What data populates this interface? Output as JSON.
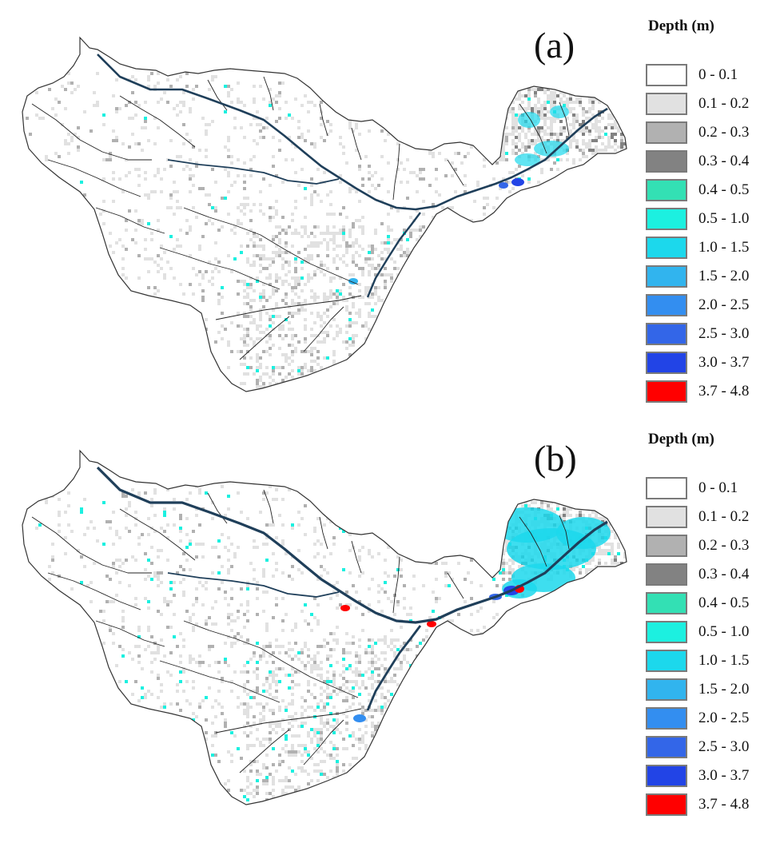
{
  "panels": [
    {
      "id": "a",
      "label": "(a)",
      "legend": {
        "title": "Depth (m)",
        "classes": [
          {
            "label": "0 - 0.1",
            "color": "#ffffff"
          },
          {
            "label": "0.1 - 0.2",
            "color": "#e1e1e1"
          },
          {
            "label": "0.2 - 0.3",
            "color": "#b1b1b1"
          },
          {
            "label": "0.3 - 0.4",
            "color": "#828282"
          },
          {
            "label": "0.4 - 0.5",
            "color": "#33e0b4"
          },
          {
            "label": "0.5 - 1.0",
            "color": "#1cf0e0"
          },
          {
            "label": "1.0 - 1.5",
            "color": "#1cd8ec"
          },
          {
            "label": "1.5 - 2.0",
            "color": "#31b4ee"
          },
          {
            "label": "2.0 - 2.5",
            "color": "#338ef0"
          },
          {
            "label": "2.5 - 3.0",
            "color": "#3366e8"
          },
          {
            "label": "3.0 - 3.7",
            "color": "#2244e6"
          },
          {
            "label": "3.7 - 4.8",
            "color": "#ff0000"
          }
        ]
      }
    },
    {
      "id": "b",
      "label": "(b)",
      "legend": {
        "title": "Depth (m)",
        "classes": [
          {
            "label": "0 - 0.1",
            "color": "#ffffff"
          },
          {
            "label": "0.1 - 0.2",
            "color": "#e1e1e1"
          },
          {
            "label": "0.2 - 0.3",
            "color": "#b1b1b1"
          },
          {
            "label": "0.3 - 0.4",
            "color": "#828282"
          },
          {
            "label": "0.4 - 0.5",
            "color": "#33e0b4"
          },
          {
            "label": "0.5 - 1.0",
            "color": "#1cf0e0"
          },
          {
            "label": "1.0 - 1.5",
            "color": "#1cd8ec"
          },
          {
            "label": "1.5 - 2.0",
            "color": "#31b4ee"
          },
          {
            "label": "2.0 - 2.5",
            "color": "#338ef0"
          },
          {
            "label": "2.5 - 3.0",
            "color": "#3366e8"
          },
          {
            "label": "3.0 - 3.7",
            "color": "#2244e6"
          },
          {
            "label": "3.7 - 4.8",
            "color": "#ff0000"
          }
        ]
      }
    }
  ],
  "map_style": {
    "basin_outline_color": "#333333",
    "river_color": "#1f3f5a",
    "stream_color": "#222222"
  }
}
